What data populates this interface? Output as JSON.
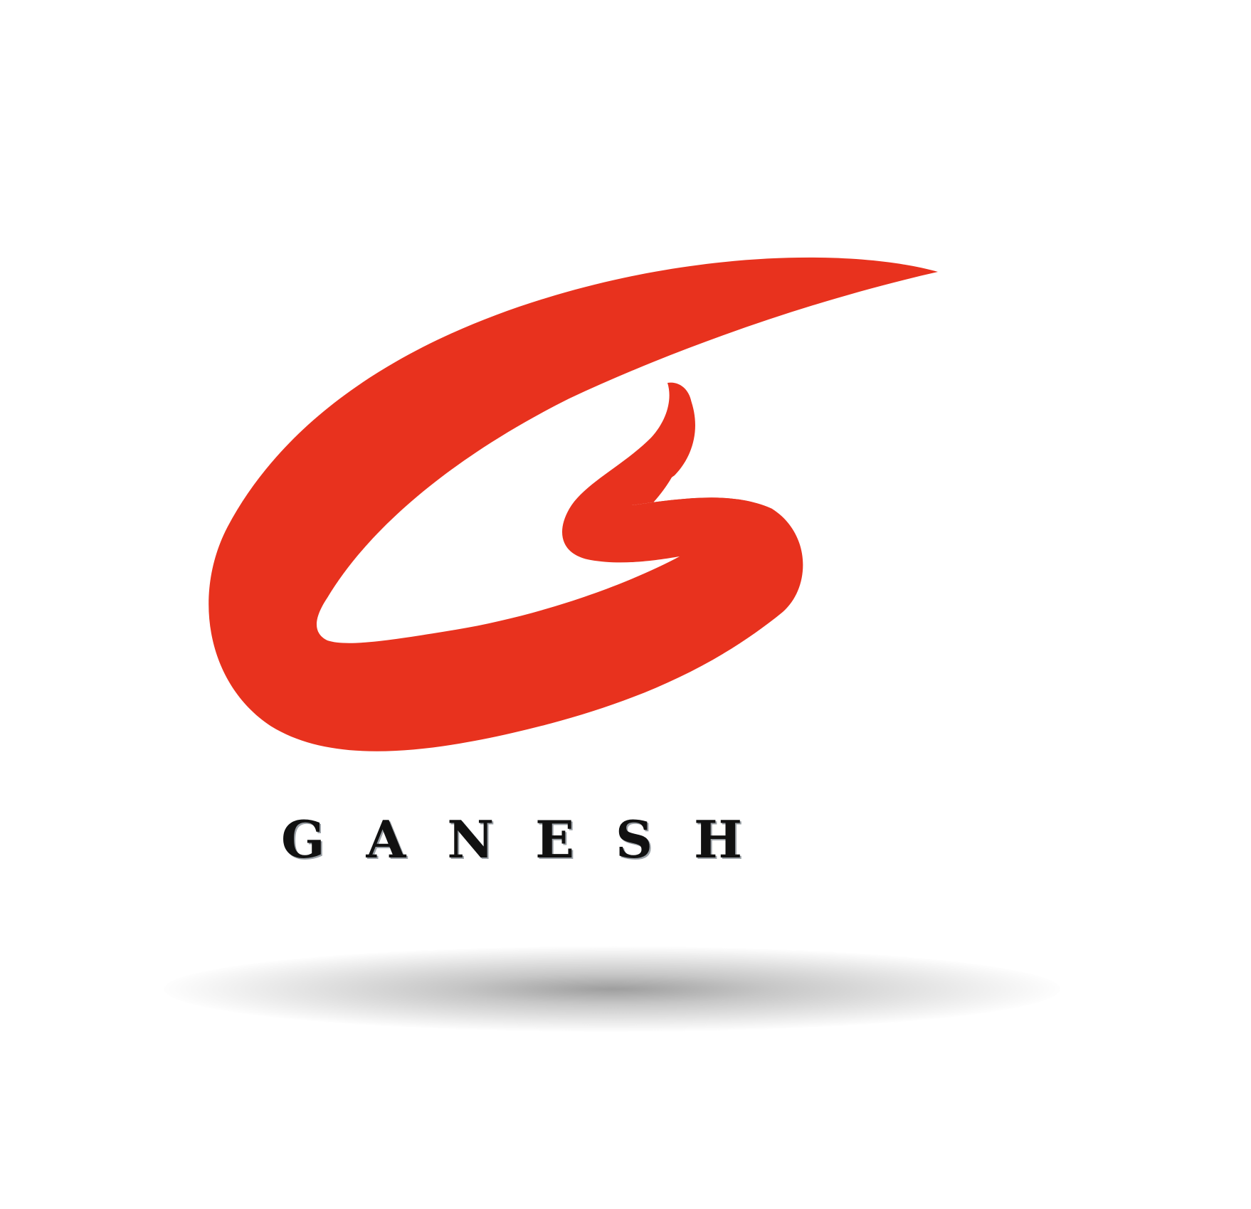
{
  "logo": {
    "mark_icon": "stylized-g-swoosh",
    "brand_name": "GANESH",
    "colors": {
      "mark": "#e8321e",
      "text": "#111111",
      "background": "#ffffff"
    }
  }
}
